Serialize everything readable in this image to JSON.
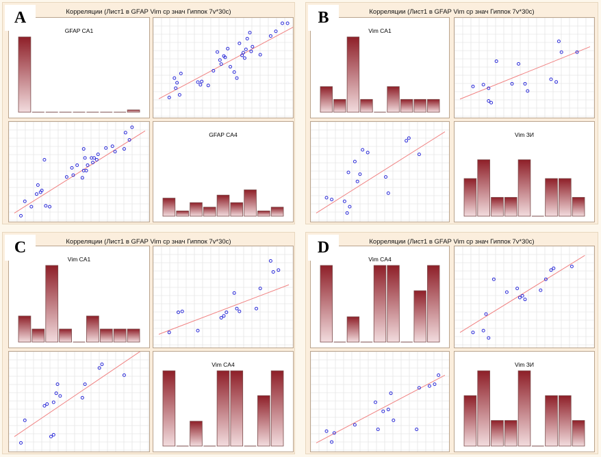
{
  "title": "Корреляции (Лист1 в GFAP Vim ср знач Гиппок 7v*30c)",
  "colors": {
    "bar_top": "#8e1f28",
    "bar_bottom": "#f2dcde",
    "bar_border": "#7a4a4a",
    "point": "#2a2ad8",
    "fit_line": "#f08080",
    "grid": "#dddddd",
    "panel_bg": "#fbeedd"
  },
  "panels": [
    {
      "letter": "A",
      "title": "Корреляции (Лист1 в GFAP Vim ср знач Гиппок 7v*30c)",
      "var_names": [
        "GFAP CA1",
        "GFAP CA4"
      ],
      "histograms": [
        {
          "label": "GFAP CA1",
          "values": [
            1.0,
            0,
            0,
            0,
            0,
            0,
            0,
            0,
            0.03
          ]
        },
        {
          "label": "GFAP CA4",
          "values": [
            0.24,
            0.07,
            0.18,
            0.12,
            0.28,
            0.18,
            0.35,
            0.07,
            0.12
          ]
        }
      ],
      "scatter_upper": {
        "points": [
          [
            0.08,
            0.24
          ],
          [
            0.12,
            0.53
          ],
          [
            0.13,
            0.38
          ],
          [
            0.14,
            0.46
          ],
          [
            0.16,
            0.28
          ],
          [
            0.17,
            0.6
          ],
          [
            0.3,
            0.47
          ],
          [
            0.32,
            0.43
          ],
          [
            0.33,
            0.48
          ],
          [
            0.38,
            0.42
          ],
          [
            0.42,
            0.64
          ],
          [
            0.47,
            0.8
          ],
          [
            0.48,
            0.74
          ],
          [
            0.5,
            0.86
          ],
          [
            0.51,
            0.84
          ],
          [
            0.53,
            0.97
          ],
          [
            0.58,
            0.62
          ],
          [
            0.6,
            0.53
          ],
          [
            0.64,
            0.87
          ],
          [
            0.65,
            0.91
          ],
          [
            0.66,
            0.83
          ],
          [
            0.67,
            0.96
          ],
          [
            0.68,
            1.12
          ],
          [
            0.7,
            1.21
          ],
          [
            0.71,
            0.93
          ],
          [
            0.72,
            1.0
          ],
          [
            0.78,
            0.88
          ],
          [
            0.86,
            1.16
          ],
          [
            0.9,
            1.23
          ],
          [
            0.95,
            1.35
          ],
          [
            0.99,
            1.35
          ],
          [
            0.55,
            0.7
          ],
          [
            0.45,
            0.92
          ],
          [
            0.62,
            1.05
          ]
        ],
        "fit": [
          [
            0,
            0.22
          ],
          [
            1.06,
            1.32
          ]
        ]
      },
      "scatter_lower": {
        "points": [
          [
            0.05,
            0.02
          ],
          [
            0.08,
            0.18
          ],
          [
            0.13,
            0.12
          ],
          [
            0.17,
            0.26
          ],
          [
            0.18,
            0.36
          ],
          [
            0.2,
            0.28
          ],
          [
            0.21,
            0.3
          ],
          [
            0.23,
            0.64
          ],
          [
            0.24,
            0.13
          ],
          [
            0.27,
            0.12
          ],
          [
            0.4,
            0.45
          ],
          [
            0.44,
            0.55
          ],
          [
            0.45,
            0.47
          ],
          [
            0.48,
            0.58
          ],
          [
            0.52,
            0.44
          ],
          [
            0.53,
            0.52
          ],
          [
            0.53,
            0.76
          ],
          [
            0.54,
            0.66
          ],
          [
            0.55,
            0.52
          ],
          [
            0.56,
            0.58
          ],
          [
            0.59,
            0.66
          ],
          [
            0.6,
            0.61
          ],
          [
            0.61,
            0.66
          ],
          [
            0.63,
            0.64
          ],
          [
            0.64,
            0.7
          ],
          [
            0.7,
            0.77
          ],
          [
            0.75,
            0.79
          ],
          [
            0.77,
            0.73
          ],
          [
            0.84,
            0.76
          ],
          [
            0.85,
            0.94
          ],
          [
            0.88,
            0.86
          ],
          [
            0.9,
            1.0
          ]
        ],
        "fit": [
          [
            0,
            0.05
          ],
          [
            1.0,
            0.96
          ]
        ]
      }
    },
    {
      "letter": "B",
      "title": "Корреляции (Лист1 в GFAP Vim ср знач Гиппок 7v*30c)",
      "var_names": [
        "Vim CA1",
        "Vim ЗИ"
      ],
      "histograms": [
        {
          "label": "Vim CA1",
          "values": [
            0.34,
            0.17,
            1.0,
            0.17,
            0,
            0.34,
            0.17,
            0.17,
            0.17
          ]
        },
        {
          "label": "Vim ЗИ",
          "values": [
            0.5,
            0.75,
            0.25,
            0.25,
            0.75,
            0,
            0.5,
            0.5,
            0.25
          ]
        }
      ],
      "scatter_upper": {
        "points": [
          [
            0.1,
            0.3
          ],
          [
            0.18,
            0.32
          ],
          [
            0.22,
            0.28
          ],
          [
            0.22,
            0.14
          ],
          [
            0.24,
            0.12
          ],
          [
            0.28,
            0.58
          ],
          [
            0.4,
            0.33
          ],
          [
            0.45,
            0.55
          ],
          [
            0.5,
            0.33
          ],
          [
            0.52,
            0.25
          ],
          [
            0.7,
            0.38
          ],
          [
            0.74,
            0.35
          ],
          [
            0.76,
            0.8
          ],
          [
            0.78,
            0.68
          ],
          [
            0.9,
            0.68
          ]
        ],
        "fit": [
          [
            0,
            0.16
          ],
          [
            1.0,
            0.74
          ]
        ]
      },
      "scatter_lower": {
        "points": [
          [
            0.08,
            0.22
          ],
          [
            0.12,
            0.2
          ],
          [
            0.22,
            0.18
          ],
          [
            0.24,
            0.05
          ],
          [
            0.26,
            0.12
          ],
          [
            0.25,
            0.5
          ],
          [
            0.3,
            0.62
          ],
          [
            0.32,
            0.4
          ],
          [
            0.34,
            0.48
          ],
          [
            0.36,
            0.75
          ],
          [
            0.4,
            0.72
          ],
          [
            0.54,
            0.45
          ],
          [
            0.56,
            0.27
          ],
          [
            0.7,
            0.85
          ],
          [
            0.72,
            0.88
          ],
          [
            0.8,
            0.7
          ]
        ],
        "fit": [
          [
            0,
            0.05
          ],
          [
            1.0,
            0.95
          ]
        ]
      }
    },
    {
      "letter": "C",
      "title": "Корреляции (Лист1 в GFAP Vim ср знач Гиппок 7v*30c)",
      "var_names": [
        "Vim CA1",
        "Vim CA4"
      ],
      "histograms": [
        {
          "label": "Vim CA1",
          "values": [
            0.34,
            0.17,
            1.0,
            0.17,
            0,
            0.34,
            0.17,
            0.17,
            0.17
          ]
        },
        {
          "label": "Vim CA4",
          "values": [
            1.0,
            0,
            0.33,
            0,
            1.0,
            1.0,
            0,
            0.67,
            1.0
          ]
        }
      ],
      "scatter_upper": {
        "points": [
          [
            0.08,
            0.12
          ],
          [
            0.15,
            0.34
          ],
          [
            0.18,
            0.35
          ],
          [
            0.3,
            0.14
          ],
          [
            0.48,
            0.28
          ],
          [
            0.5,
            0.3
          ],
          [
            0.52,
            0.34
          ],
          [
            0.58,
            0.55
          ],
          [
            0.6,
            0.38
          ],
          [
            0.62,
            0.35
          ],
          [
            0.75,
            0.38
          ],
          [
            0.78,
            0.6
          ],
          [
            0.86,
            0.9
          ],
          [
            0.88,
            0.78
          ],
          [
            0.92,
            0.8
          ]
        ],
        "fit": [
          [
            0,
            0.1
          ],
          [
            1.0,
            0.64
          ]
        ]
      },
      "scatter_lower": {
        "points": [
          [
            0.05,
            0.05
          ],
          [
            0.08,
            0.3
          ],
          [
            0.23,
            0.46
          ],
          [
            0.25,
            0.48
          ],
          [
            0.28,
            0.12
          ],
          [
            0.3,
            0.14
          ],
          [
            0.3,
            0.5
          ],
          [
            0.32,
            0.6
          ],
          [
            0.33,
            0.7
          ],
          [
            0.35,
            0.57
          ],
          [
            0.52,
            0.55
          ],
          [
            0.54,
            0.7
          ],
          [
            0.65,
            0.88
          ],
          [
            0.67,
            0.92
          ],
          [
            0.84,
            0.8
          ]
        ],
        "fit": [
          [
            0,
            0.12
          ],
          [
            1.0,
            1.1
          ]
        ]
      }
    },
    {
      "letter": "D",
      "title": "Корреляции (Лист1 в GFAP Vim ср знач Гиппок 7v*30c)",
      "var_names": [
        "Vim CA4",
        "Vim ЗИ"
      ],
      "histograms": [
        {
          "label": "Vim CA4",
          "values": [
            1.0,
            0,
            0.33,
            0,
            1.0,
            1.0,
            0,
            0.67,
            1.0
          ]
        },
        {
          "label": "Vim ЗИ",
          "values": [
            0.67,
            1.0,
            0.34,
            0.34,
            1.0,
            0,
            0.67,
            0.67,
            0.34
          ]
        }
      ],
      "scatter_upper": {
        "points": [
          [
            0.1,
            0.12
          ],
          [
            0.18,
            0.14
          ],
          [
            0.2,
            0.32
          ],
          [
            0.22,
            0.06
          ],
          [
            0.26,
            0.7
          ],
          [
            0.36,
            0.56
          ],
          [
            0.44,
            0.6
          ],
          [
            0.46,
            0.5
          ],
          [
            0.48,
            0.52
          ],
          [
            0.5,
            0.48
          ],
          [
            0.62,
            0.58
          ],
          [
            0.66,
            0.7
          ],
          [
            0.7,
            0.8
          ],
          [
            0.72,
            0.82
          ],
          [
            0.86,
            0.84
          ]
        ],
        "fit": [
          [
            0,
            0.12
          ],
          [
            0.96,
            0.96
          ]
        ]
      },
      "scatter_lower": {
        "points": [
          [
            0.08,
            0.18
          ],
          [
            0.12,
            0.06
          ],
          [
            0.14,
            0.16
          ],
          [
            0.3,
            0.25
          ],
          [
            0.46,
            0.5
          ],
          [
            0.48,
            0.2
          ],
          [
            0.52,
            0.4
          ],
          [
            0.56,
            0.42
          ],
          [
            0.58,
            0.6
          ],
          [
            0.6,
            0.3
          ],
          [
            0.78,
            0.2
          ],
          [
            0.8,
            0.66
          ],
          [
            0.88,
            0.68
          ],
          [
            0.92,
            0.7
          ],
          [
            0.95,
            0.8
          ]
        ],
        "fit": [
          [
            0,
            0.05
          ],
          [
            1.0,
            0.8
          ]
        ]
      }
    }
  ],
  "chart_data": [
    {
      "type": "scatter",
      "panel": "A",
      "title": "Корреляции (Лист1 в GFAP Vim ср знач Гиппок 7v*30c)",
      "variables": [
        "GFAP CA1",
        "GFAP CA4"
      ],
      "grid": true
    },
    {
      "type": "scatter",
      "panel": "B",
      "title": "Корреляции (Лист1 в GFAP Vim ср знач Гиппок 7v*30c)",
      "variables": [
        "Vim CA1",
        "Vim ЗИ"
      ],
      "grid": true
    },
    {
      "type": "scatter",
      "panel": "C",
      "title": "Корреляции (Лист1 в GFAP Vim ср знач Гиппок 7v*30c)",
      "variables": [
        "Vim CA1",
        "Vim CA4"
      ],
      "grid": true
    },
    {
      "type": "scatter",
      "panel": "D",
      "title": "Корреляции (Лист1 в GFAP Vim ср знач Гиппок 7v*30c)",
      "variables": [
        "Vim CA4",
        "Vim ЗИ"
      ],
      "grid": true
    }
  ]
}
